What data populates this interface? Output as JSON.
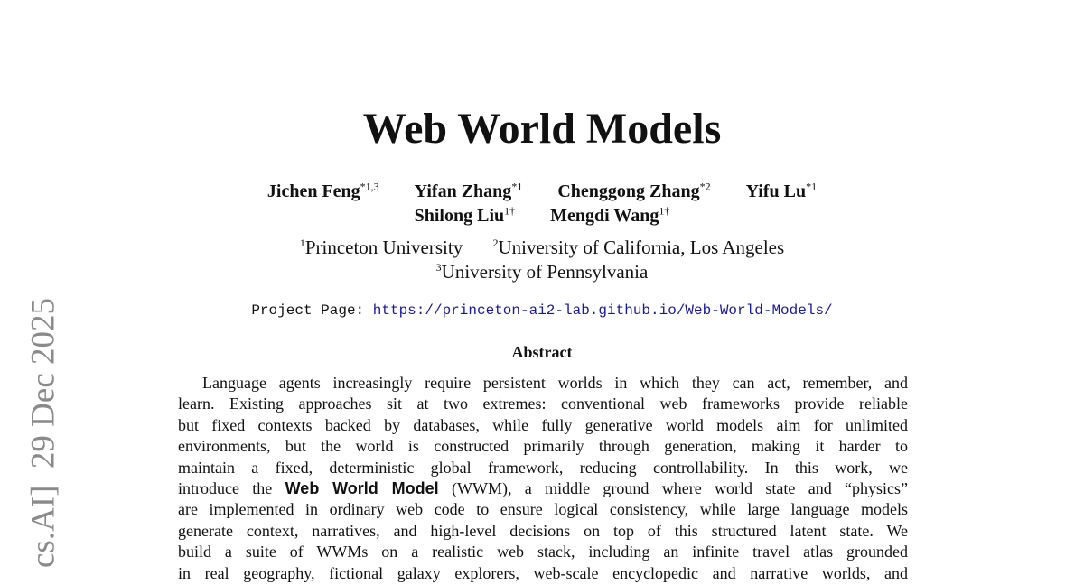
{
  "side_stamp": "cs.AI]  29 Dec 2025",
  "title": "Web World Models",
  "authors_row1": [
    {
      "name": "Jichen Feng",
      "sup": "*1,3"
    },
    {
      "name": "Yifan Zhang",
      "sup": "*1"
    },
    {
      "name": "Chenggong Zhang",
      "sup": "*2"
    },
    {
      "name": "Yifu Lu",
      "sup": "*1"
    }
  ],
  "authors_row2": [
    {
      "name": "Shilong Liu",
      "sup": "1†"
    },
    {
      "name": "Mengdi Wang",
      "sup": "1†"
    }
  ],
  "affiliations_row1": [
    {
      "sup": "1",
      "name": "Princeton University"
    },
    {
      "sup": "2",
      "name": "University of California, Los Angeles"
    }
  ],
  "affiliations_row2": [
    {
      "sup": "3",
      "name": "University of Pennsylvania"
    }
  ],
  "project": {
    "label": "Project Page:",
    "url": "https://princeton-ai2-lab.github.io/Web-World-Models/"
  },
  "abstract": {
    "heading": "Abstract",
    "lines": [
      "Language agents increasingly require persistent worlds in which they can act, remember, and",
      "learn. Existing approaches sit at two extremes: conventional web frameworks provide reliable",
      "but fixed contexts backed by databases, while fully generative world models aim for unlimited",
      "environments, but the world is constructed primarily through generation, making it harder to",
      "maintain a fixed, deterministic global framework, reducing controllability. In this work, we",
      "",
      "are implemented in ordinary web code to ensure logical consistency, while large language models",
      "generate context, narratives, and high-level decisions on top of this structured latent state. We",
      "build a suite of WWMs on a realistic web stack, including an infinite travel atlas grounded",
      "in real geography, fictional galaxy explorers, web-scale encyclopedic and narrative worlds, and"
    ],
    "line6": {
      "before": "introduce the ",
      "bold": "Web World Model",
      "after": " (WWM), a middle ground where world state and “physics”"
    }
  }
}
